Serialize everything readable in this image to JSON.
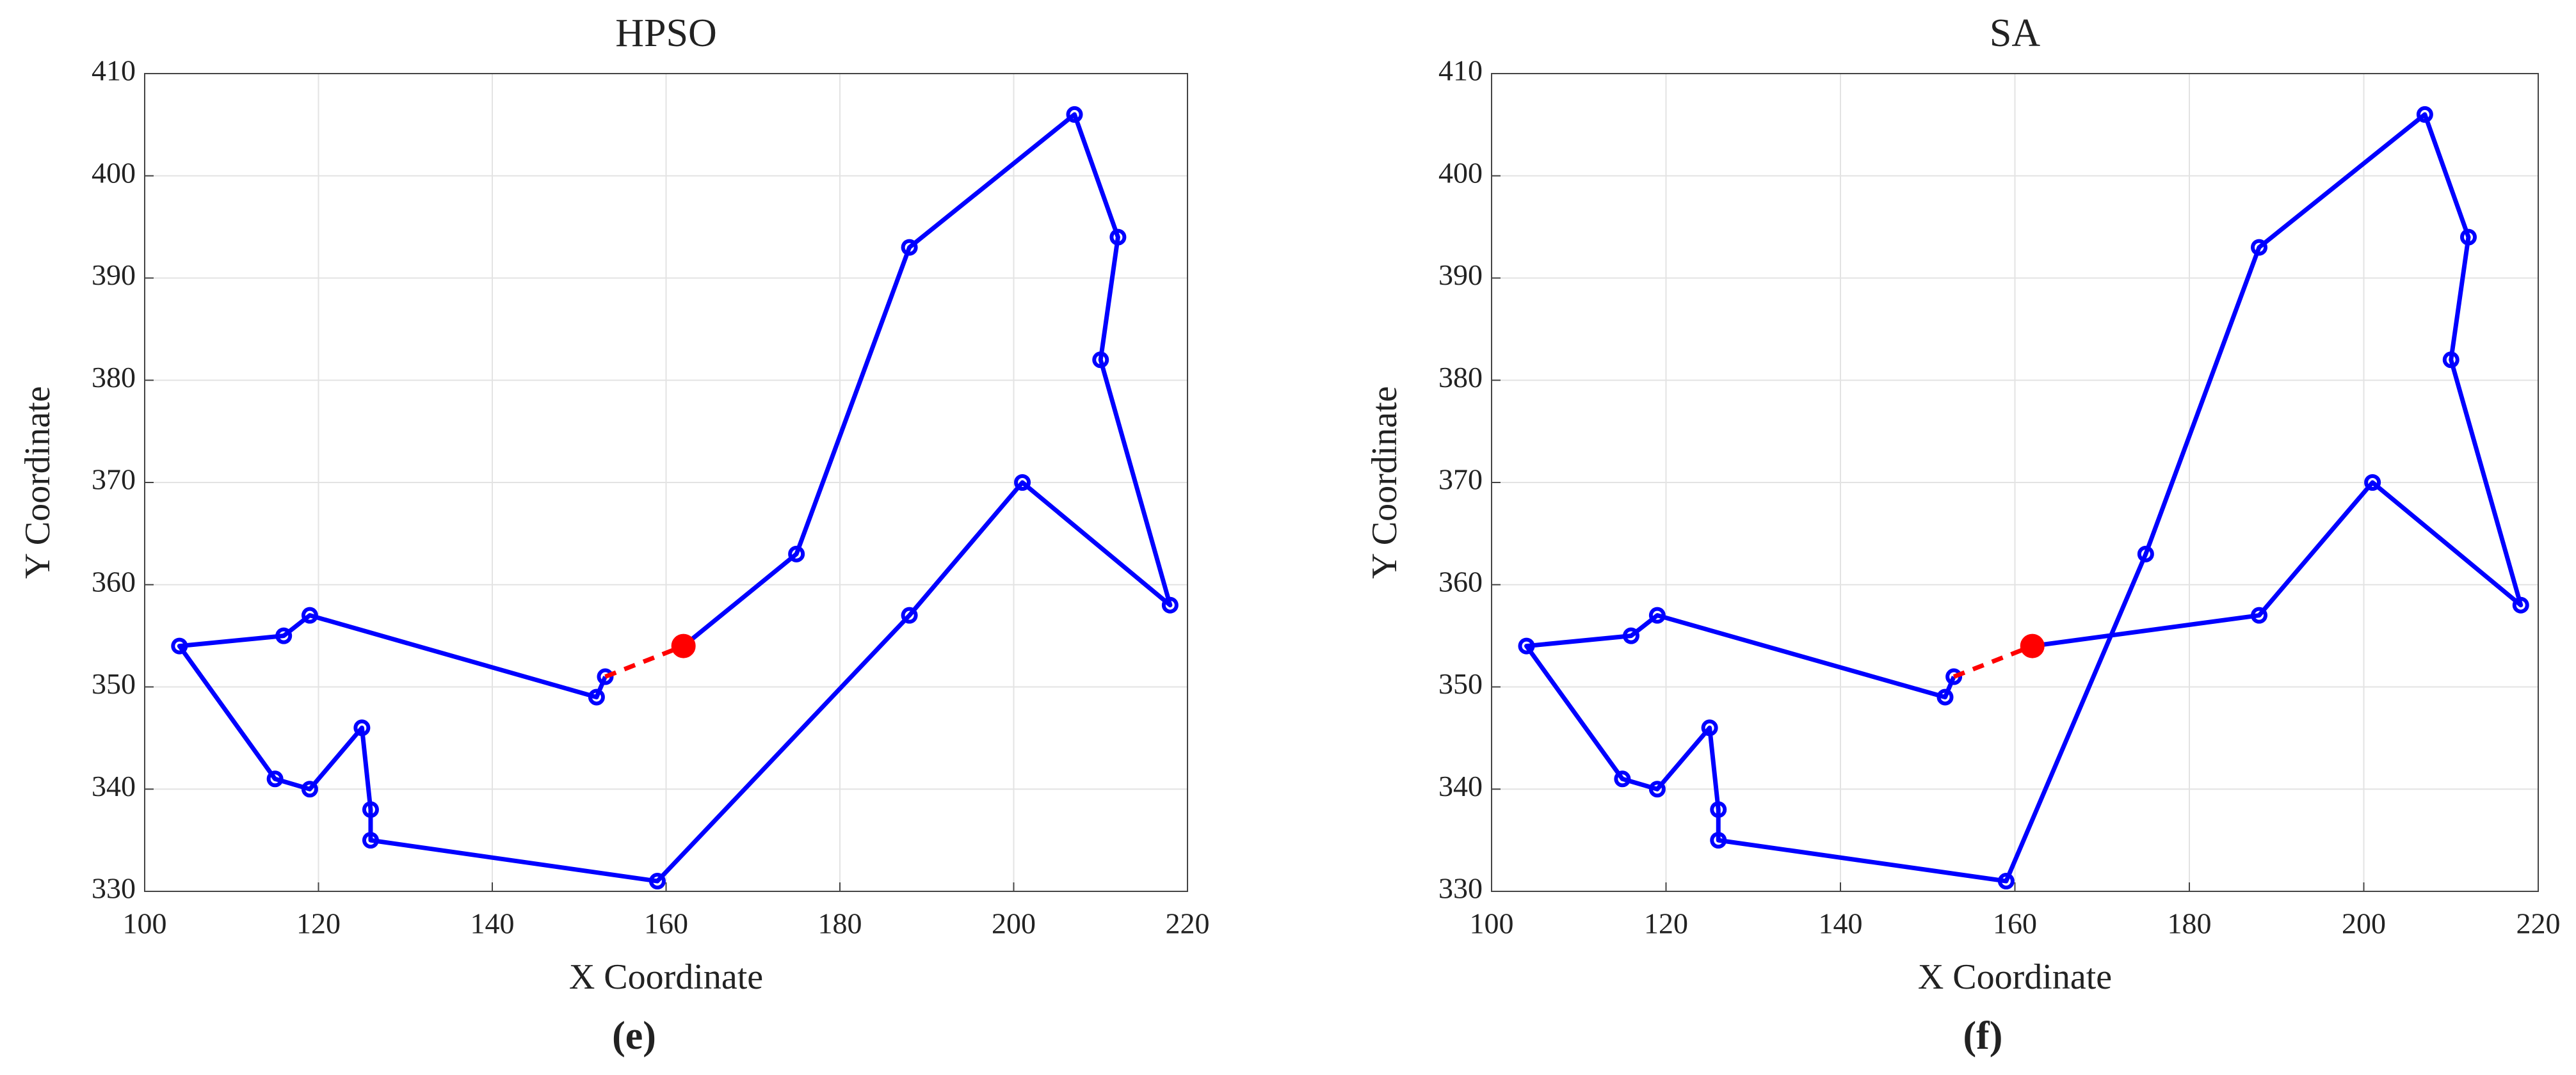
{
  "chart_data": [
    {
      "type": "line",
      "title": "HPSO",
      "xlabel": "X Coordinate",
      "ylabel": "Y Coordinate",
      "panel_label": "(e)",
      "xlim": [
        100,
        220
      ],
      "xticks": [
        100,
        120,
        140,
        160,
        180,
        200,
        220
      ],
      "ylim": [
        330,
        410
      ],
      "yticks": [
        330,
        340,
        350,
        360,
        370,
        380,
        390,
        400,
        410
      ],
      "grid": true,
      "series": [
        {
          "color": "#0000ff",
          "linestyle": "solid",
          "marker": "circle",
          "x": [
            162,
            175,
            188,
            207,
            212,
            210,
            218,
            201,
            188,
            159,
            126,
            126,
            125,
            119,
            115,
            104,
            116,
            119,
            152,
            153
          ],
          "values": [
            354,
            363,
            393,
            406,
            394,
            382,
            358,
            370,
            357,
            331,
            335,
            338,
            346,
            340,
            341,
            354,
            355,
            357,
            349,
            351
          ]
        },
        {
          "color": "#ff0000",
          "linestyle": "dashed",
          "marker": "none",
          "x": [
            153,
            162
          ],
          "values": [
            351,
            354
          ]
        },
        {
          "color": "#ff0000",
          "linestyle": "none",
          "marker": "filled-circle",
          "x": [
            162
          ],
          "values": [
            354
          ]
        }
      ]
    },
    {
      "type": "line",
      "title": "SA",
      "xlabel": "X Coordinate",
      "ylabel": "Y Coordinate",
      "panel_label": "(f)",
      "xlim": [
        100,
        220
      ],
      "xticks": [
        100,
        120,
        140,
        160,
        180,
        200,
        220
      ],
      "ylim": [
        330,
        410
      ],
      "yticks": [
        330,
        340,
        350,
        360,
        370,
        380,
        390,
        400,
        410
      ],
      "grid": true,
      "series": [
        {
          "color": "#0000ff",
          "linestyle": "solid",
          "marker": "circle",
          "x": [
            162,
            188,
            201,
            218,
            210,
            212,
            207,
            188,
            175,
            159,
            126,
            126,
            125,
            119,
            115,
            104,
            116,
            119,
            152,
            153
          ],
          "values": [
            354,
            357,
            370,
            358,
            382,
            394,
            406,
            393,
            363,
            331,
            335,
            338,
            346,
            340,
            341,
            354,
            355,
            357,
            349,
            351
          ]
        },
        {
          "color": "#ff0000",
          "linestyle": "dashed",
          "marker": "none",
          "x": [
            153,
            162
          ],
          "values": [
            351,
            354
          ]
        },
        {
          "color": "#ff0000",
          "linestyle": "none",
          "marker": "filled-circle",
          "x": [
            162
          ],
          "values": [
            354
          ]
        }
      ]
    }
  ]
}
